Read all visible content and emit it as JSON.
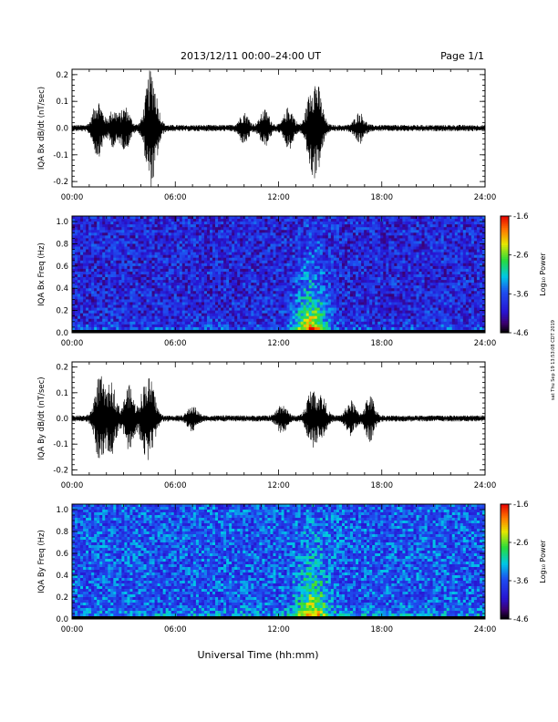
{
  "header": {
    "title": "2013/12/11  00:00–24:00 UT",
    "page": "Page 1/1"
  },
  "footer": {
    "xlabel": "Universal Time (hh:mm)",
    "side_stamp": "sat Thu Sep 19 13:53:08 CDT 2019"
  },
  "colorbar": {
    "label": "Log₁₀ Power",
    "ticks": [
      "-1.6",
      "-2.6",
      "-3.6",
      "-4.6"
    ],
    "tick_values": [
      -1.6,
      -2.6,
      -3.6,
      -4.6
    ],
    "range": [
      -4.6,
      -1.6
    ]
  },
  "colors": {
    "trace": "#000000",
    "background_blue": "#1e3cdc"
  },
  "chart_data": [
    {
      "type": "line",
      "id": "bx",
      "ylabel": "IQA Bx dB/dt (nT/sec)",
      "xticks": [
        "00:00",
        "06:00",
        "12:00",
        "18:00",
        "24:00"
      ],
      "xlim": [
        0,
        24
      ],
      "ylim": [
        -0.22,
        0.22
      ],
      "yticks": [
        "0.2",
        "0.1",
        "0.0",
        "-0.1",
        "-0.2"
      ],
      "ytick_values": [
        0.2,
        0.1,
        0.0,
        -0.1,
        -0.2
      ],
      "baseline_amplitude": 0.012,
      "bursts": [
        {
          "t": 1.5,
          "amp": 0.1
        },
        {
          "t": 2.4,
          "amp": 0.06
        },
        {
          "t": 3.1,
          "amp": 0.07
        },
        {
          "t": 4.5,
          "amp": 0.16
        },
        {
          "t": 4.8,
          "amp": 0.09
        },
        {
          "t": 10.0,
          "amp": 0.05
        },
        {
          "t": 11.2,
          "amp": 0.06
        },
        {
          "t": 12.6,
          "amp": 0.07
        },
        {
          "t": 13.9,
          "amp": 0.13
        },
        {
          "t": 14.3,
          "amp": 0.12
        },
        {
          "t": 16.7,
          "amp": 0.05
        }
      ]
    },
    {
      "type": "heatmap",
      "id": "bx_spec",
      "ylabel": "IQA Bx Freq (Hz)",
      "xticks": [
        "00:00",
        "06:00",
        "12:00",
        "18:00",
        "24:00"
      ],
      "xlim": [
        0,
        24
      ],
      "ylim": [
        0,
        1.05
      ],
      "yticks": [
        "1.0",
        "0.8",
        "0.6",
        "0.4",
        "0.2",
        "0.0"
      ],
      "ytick_values": [
        1.0,
        0.8,
        0.6,
        0.4,
        0.2,
        0.0
      ],
      "z_range": [
        -4.6,
        -1.6
      ],
      "background_level": -3.9,
      "activity_peak": {
        "t": 13.9,
        "level": -2.0
      }
    },
    {
      "type": "line",
      "id": "by",
      "ylabel": "IQA By dB/dt (nT/sec)",
      "xticks": [
        "00:00",
        "06:00",
        "12:00",
        "18:00",
        "24:00"
      ],
      "xlim": [
        0,
        24
      ],
      "ylim": [
        -0.22,
        0.22
      ],
      "yticks": [
        "0.2",
        "0.1",
        "0.0",
        "-0.1",
        "-0.2"
      ],
      "ytick_values": [
        0.2,
        0.1,
        0.0,
        -0.1,
        -0.2
      ],
      "baseline_amplitude": 0.012,
      "bursts": [
        {
          "t": 1.6,
          "amp": 0.16
        },
        {
          "t": 2.3,
          "amp": 0.13
        },
        {
          "t": 3.3,
          "amp": 0.12
        },
        {
          "t": 4.2,
          "amp": 0.1
        },
        {
          "t": 4.6,
          "amp": 0.11
        },
        {
          "t": 7.0,
          "amp": 0.04
        },
        {
          "t": 12.2,
          "amp": 0.05
        },
        {
          "t": 13.9,
          "amp": 0.1
        },
        {
          "t": 14.5,
          "amp": 0.08
        },
        {
          "t": 16.2,
          "amp": 0.06
        },
        {
          "t": 17.3,
          "amp": 0.08
        }
      ]
    },
    {
      "type": "heatmap",
      "id": "by_spec",
      "ylabel": "IQA By Freq (Hz)",
      "xticks": [
        "00:00",
        "06:00",
        "12:00",
        "18:00",
        "24:00"
      ],
      "xlim": [
        0,
        24
      ],
      "ylim": [
        0,
        1.05
      ],
      "yticks": [
        "1.0",
        "0.8",
        "0.6",
        "0.4",
        "0.2",
        "0.0"
      ],
      "ytick_values": [
        1.0,
        0.8,
        0.6,
        0.4,
        0.2,
        0.0
      ],
      "z_range": [
        -4.6,
        -1.6
      ],
      "background_level": -3.6,
      "activity_peak": {
        "t": 14.0,
        "level": -2.2
      }
    }
  ]
}
